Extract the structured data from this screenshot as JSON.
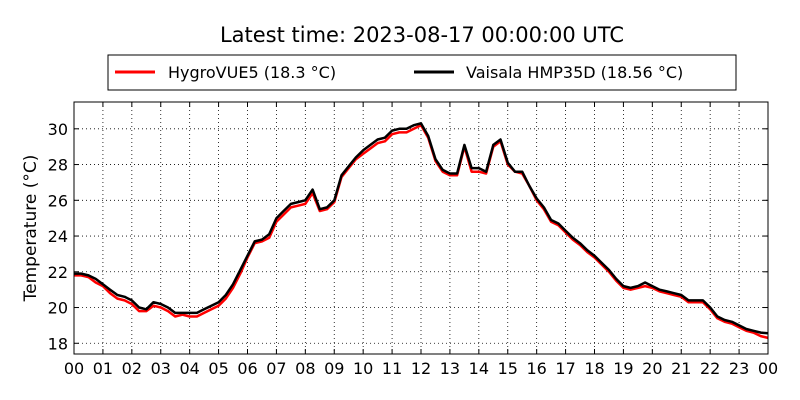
{
  "chart_data": {
    "type": "line",
    "title": "Latest time: 2023-08-17 00:00:00 UTC",
    "ylabel": "Temperature (°C)",
    "xlabel": "",
    "xlim": [
      0,
      24
    ],
    "ylim": [
      17.4,
      31.5
    ],
    "x_ticks": [
      "00",
      "01",
      "02",
      "03",
      "04",
      "05",
      "06",
      "07",
      "08",
      "09",
      "10",
      "11",
      "12",
      "13",
      "14",
      "15",
      "16",
      "17",
      "18",
      "19",
      "20",
      "21",
      "22",
      "23",
      "00"
    ],
    "y_ticks": [
      18,
      20,
      22,
      24,
      26,
      28,
      30
    ],
    "grid": true,
    "legend_position": "top",
    "x_hours": [
      0,
      0.25,
      0.5,
      0.75,
      1,
      1.25,
      1.5,
      1.75,
      2,
      2.25,
      2.5,
      2.75,
      3,
      3.25,
      3.5,
      3.75,
      4,
      4.25,
      4.5,
      4.75,
      5,
      5.25,
      5.5,
      5.75,
      6,
      6.25,
      6.5,
      6.75,
      7,
      7.25,
      7.5,
      7.75,
      8,
      8.25,
      8.5,
      8.75,
      9,
      9.25,
      9.5,
      9.75,
      10,
      10.25,
      10.5,
      10.75,
      11,
      11.25,
      11.5,
      11.75,
      12,
      12.25,
      12.5,
      12.75,
      13,
      13.25,
      13.5,
      13.75,
      14,
      14.25,
      14.5,
      14.75,
      15,
      15.25,
      15.5,
      15.75,
      16,
      16.25,
      16.5,
      16.75,
      17,
      17.25,
      17.5,
      17.75,
      18,
      18.25,
      18.5,
      18.75,
      19,
      19.25,
      19.5,
      19.75,
      20,
      20.25,
      20.5,
      20.75,
      21,
      21.25,
      21.5,
      21.75,
      22,
      22.25,
      22.5,
      22.75,
      23,
      23.25,
      23.5,
      23.75,
      24
    ],
    "series": [
      {
        "name": "HygroVUE5 (18.3 °C)",
        "color": "#ff0000",
        "values": [
          21.8,
          21.8,
          21.7,
          21.4,
          21.2,
          20.8,
          20.5,
          20.4,
          20.2,
          19.8,
          19.8,
          20.1,
          20.0,
          19.8,
          19.5,
          19.6,
          19.5,
          19.5,
          19.7,
          19.9,
          20.1,
          20.5,
          21.1,
          21.9,
          22.8,
          23.6,
          23.7,
          23.9,
          24.8,
          25.2,
          25.6,
          25.7,
          25.8,
          26.4,
          25.4,
          25.5,
          25.9,
          27.3,
          27.8,
          28.3,
          28.6,
          28.9,
          29.2,
          29.3,
          29.7,
          29.8,
          29.8,
          30.0,
          30.2,
          29.5,
          28.2,
          27.6,
          27.4,
          27.4,
          29.0,
          27.6,
          27.6,
          27.5,
          29.0,
          29.3,
          28.0,
          27.6,
          27.5,
          26.8,
          26.0,
          25.5,
          24.8,
          24.6,
          24.2,
          23.8,
          23.5,
          23.1,
          22.8,
          22.4,
          22.0,
          21.5,
          21.1,
          21.0,
          21.1,
          21.2,
          21.1,
          20.9,
          20.8,
          20.7,
          20.6,
          20.3,
          20.3,
          20.3,
          19.9,
          19.4,
          19.2,
          19.1,
          18.9,
          18.7,
          18.6,
          18.4,
          18.3
        ]
      },
      {
        "name": "Vaisala HMP35D (18.56 °C)",
        "color": "#000000",
        "values": [
          21.9,
          21.9,
          21.8,
          21.6,
          21.3,
          21.0,
          20.7,
          20.6,
          20.4,
          20.0,
          19.9,
          20.3,
          20.2,
          20.0,
          19.7,
          19.7,
          19.7,
          19.7,
          19.9,
          20.1,
          20.3,
          20.7,
          21.3,
          22.1,
          22.9,
          23.7,
          23.8,
          24.1,
          25.0,
          25.4,
          25.8,
          25.9,
          26.0,
          26.6,
          25.5,
          25.6,
          26.0,
          27.4,
          27.9,
          28.4,
          28.8,
          29.1,
          29.4,
          29.5,
          29.9,
          30.0,
          30.0,
          30.2,
          30.3,
          29.6,
          28.3,
          27.7,
          27.5,
          27.5,
          29.1,
          27.8,
          27.8,
          27.6,
          29.1,
          29.4,
          28.1,
          27.6,
          27.6,
          26.8,
          26.1,
          25.6,
          24.9,
          24.7,
          24.3,
          23.9,
          23.6,
          23.2,
          22.9,
          22.5,
          22.1,
          21.6,
          21.2,
          21.1,
          21.2,
          21.4,
          21.2,
          21.0,
          20.9,
          20.8,
          20.7,
          20.4,
          20.4,
          20.4,
          20.0,
          19.5,
          19.3,
          19.2,
          19.0,
          18.8,
          18.7,
          18.6,
          18.56
        ]
      }
    ]
  }
}
